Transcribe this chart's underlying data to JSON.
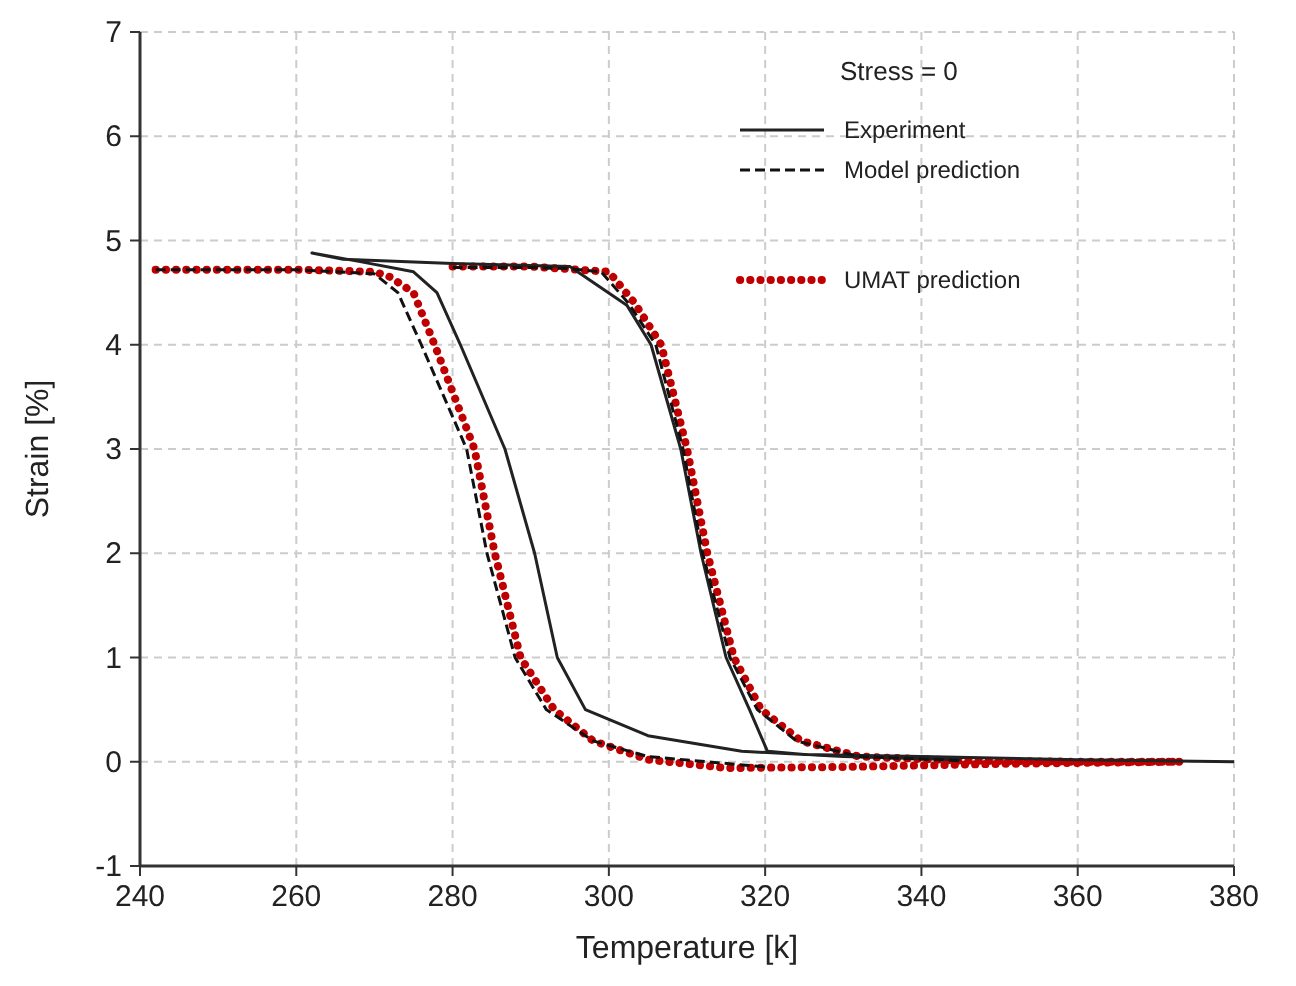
{
  "chart_data": {
    "type": "line",
    "xlabel": "Temperature [k]",
    "ylabel": "Strain [%]",
    "legend_title": "Stress = 0",
    "xlim": [
      240,
      380
    ],
    "ylim": [
      -1,
      7
    ],
    "xticks": [
      240,
      260,
      280,
      300,
      320,
      340,
      360,
      380
    ],
    "yticks": [
      -1,
      0,
      1,
      2,
      3,
      4,
      5,
      6,
      7
    ],
    "grid": true,
    "legend": "top right",
    "series": [
      {
        "name": "Experiment",
        "color": "#222222",
        "line_style": "solid",
        "x": [
          345,
          330,
          317,
          305,
          297,
          293.4,
          290.5,
          286.7,
          281,
          278,
          275,
          268,
          262,
          266,
          280,
          295,
          302.3,
          305.4,
          309.2,
          311.8,
          315,
          318,
          320.3,
          325,
          340,
          360,
          380
        ],
        "values": [
          0.02,
          0.05,
          0.1,
          0.25,
          0.5,
          1,
          2,
          3,
          4,
          4.5,
          4.7,
          4.8,
          4.88,
          4.82,
          4.78,
          4.75,
          4.38,
          4,
          3,
          2,
          1,
          0.5,
          0.1,
          0.07,
          0.05,
          0.02,
          0
        ]
      },
      {
        "name": "Model prediction",
        "color": "#111111",
        "line_style": "dashed",
        "x": [
          242,
          260,
          270,
          273,
          276,
          281.8,
          284.4,
          288,
          292,
          298,
          305,
          320
        ],
        "values": [
          4.72,
          4.72,
          4.68,
          4.5,
          4,
          3,
          2,
          1,
          0.5,
          0.2,
          0.05,
          -0.05
        ]
      },
      {
        "name": "UMAT prediction",
        "color": "#c00000",
        "line_style": "dotted",
        "x": [
          242,
          260,
          270,
          272,
          275,
          277.7,
          282.8,
          285.4,
          288.7,
          293,
          298,
          305,
          315,
          330,
          350,
          373
        ],
        "values": [
          4.72,
          4.72,
          4.7,
          4.65,
          4.5,
          4,
          3,
          2,
          1,
          0.5,
          0.2,
          0.02,
          -0.06,
          -0.05,
          -0.02,
          0
        ]
      },
      {
        "color": "#c00000",
        "line_style": "dotted",
        "x": [
          280,
          290,
          300,
          303.3,
          306.7,
          310,
          312.6,
          316,
          319.5,
          324.6,
          332,
          345,
          360,
          373
        ],
        "values": [
          4.75,
          4.75,
          4.7,
          4.4,
          4,
          3,
          2,
          1,
          0.5,
          0.2,
          0.05,
          0.01,
          0,
          0
        ]
      },
      {
        "color": "#111111",
        "line_style": "dashed",
        "x": [
          280,
          290,
          295,
          299,
          302.5,
          306,
          309.5,
          312,
          315.5,
          319,
          324,
          332,
          345
        ],
        "values": [
          4.74,
          4.74,
          4.73,
          4.7,
          4.4,
          4,
          3,
          2,
          1,
          0.5,
          0.2,
          0.05,
          0.01
        ]
      }
    ]
  }
}
